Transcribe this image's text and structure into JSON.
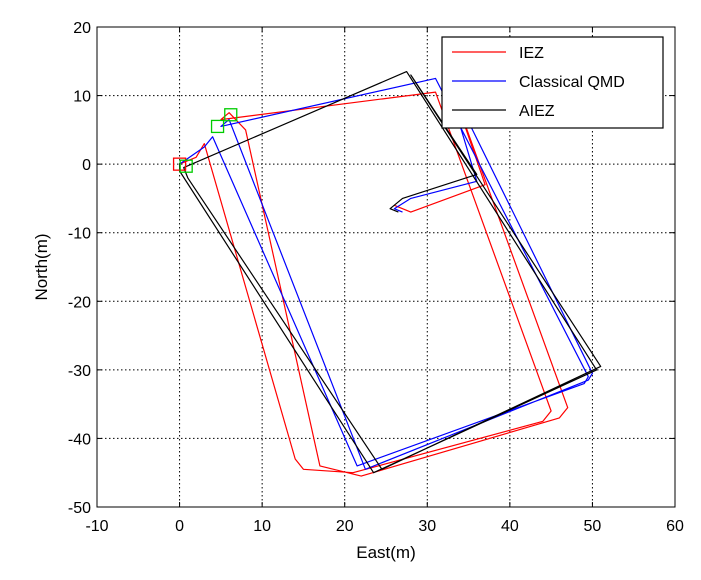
{
  "chart_data": {
    "type": "line",
    "title": "",
    "xlabel": "East(m)",
    "ylabel": "North(m)",
    "xlim": [
      -10,
      60
    ],
    "ylim": [
      -50,
      20
    ],
    "xticks": [
      -10,
      0,
      10,
      20,
      30,
      40,
      50,
      60
    ],
    "yticks": [
      -50,
      -40,
      -30,
      -20,
      -10,
      0,
      10,
      20
    ],
    "grid": true,
    "legend_position": "top-right",
    "series": [
      {
        "name": "IEZ",
        "color": "#ff0000",
        "points": [
          [
            0,
            0
          ],
          [
            2,
            1
          ],
          [
            3,
            3
          ],
          [
            14,
            -43
          ],
          [
            15,
            -44.5
          ],
          [
            21,
            -45
          ],
          [
            44,
            -37.5
          ],
          [
            45,
            -36
          ],
          [
            31,
            10.5
          ],
          [
            5,
            6.5
          ],
          [
            6,
            7.5
          ],
          [
            8,
            5
          ],
          [
            17,
            -44
          ],
          [
            22,
            -45.5
          ],
          [
            46,
            -37
          ],
          [
            47,
            -35.5
          ],
          [
            33,
            11
          ],
          [
            37,
            -3
          ],
          [
            28,
            -7
          ],
          [
            26,
            -6
          ]
        ]
      },
      {
        "name": "Classical QMD",
        "color": "#0000ff",
        "points": [
          [
            0,
            0
          ],
          [
            3,
            2.5
          ],
          [
            4,
            4
          ],
          [
            21.5,
            -44
          ],
          [
            49,
            -32
          ],
          [
            49.5,
            -31
          ],
          [
            31,
            12.5
          ],
          [
            5,
            5.5
          ],
          [
            6,
            6.5
          ],
          [
            22.5,
            -44.5
          ],
          [
            49.5,
            -31.5
          ],
          [
            50,
            -30.5
          ],
          [
            32,
            13.5
          ],
          [
            36,
            -2.5
          ],
          [
            28,
            -5
          ],
          [
            26,
            -6.5
          ],
          [
            27,
            -7
          ]
        ]
      },
      {
        "name": "AIEZ",
        "color": "#000000",
        "points": [
          [
            0,
            0
          ],
          [
            0,
            -1
          ],
          [
            23.5,
            -45
          ],
          [
            50.5,
            -30
          ],
          [
            27.5,
            13.5
          ],
          [
            0.5,
            -0.5
          ],
          [
            1,
            -2
          ],
          [
            24.5,
            -44.5
          ],
          [
            51,
            -29.5
          ],
          [
            28,
            13
          ],
          [
            36,
            -1.5
          ],
          [
            27,
            -5
          ],
          [
            25.5,
            -6.5
          ],
          [
            26.5,
            -7
          ]
        ]
      }
    ],
    "markers": [
      {
        "shape": "square",
        "color": "#ff0000",
        "point": [
          0,
          0
        ]
      },
      {
        "shape": "square",
        "color": "#00cc00",
        "point": [
          0.8,
          -0.3
        ]
      },
      {
        "shape": "square",
        "color": "#00cc00",
        "point": [
          4.6,
          5.5
        ]
      },
      {
        "shape": "square",
        "color": "#00cc00",
        "point": [
          6.2,
          7.2
        ]
      }
    ]
  }
}
